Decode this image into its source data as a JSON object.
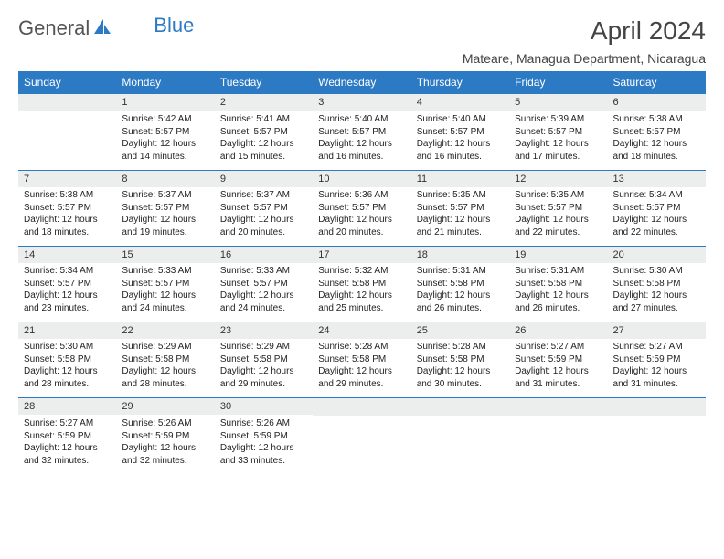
{
  "logo": {
    "word1": "General",
    "word2": "Blue"
  },
  "title": "April 2024",
  "location": "Mateare, Managua Department, Nicaragua",
  "headers": [
    "Sunday",
    "Monday",
    "Tuesday",
    "Wednesday",
    "Thursday",
    "Friday",
    "Saturday"
  ],
  "colors": {
    "header_bg": "#2d7ac4",
    "daynum_bg": "#eceded",
    "rule": "#2d7ac4"
  },
  "weeks": [
    [
      {
        "n": "",
        "lines": []
      },
      {
        "n": "1",
        "lines": [
          "Sunrise: 5:42 AM",
          "Sunset: 5:57 PM",
          "Daylight: 12 hours and 14 minutes."
        ]
      },
      {
        "n": "2",
        "lines": [
          "Sunrise: 5:41 AM",
          "Sunset: 5:57 PM",
          "Daylight: 12 hours and 15 minutes."
        ]
      },
      {
        "n": "3",
        "lines": [
          "Sunrise: 5:40 AM",
          "Sunset: 5:57 PM",
          "Daylight: 12 hours and 16 minutes."
        ]
      },
      {
        "n": "4",
        "lines": [
          "Sunrise: 5:40 AM",
          "Sunset: 5:57 PM",
          "Daylight: 12 hours and 16 minutes."
        ]
      },
      {
        "n": "5",
        "lines": [
          "Sunrise: 5:39 AM",
          "Sunset: 5:57 PM",
          "Daylight: 12 hours and 17 minutes."
        ]
      },
      {
        "n": "6",
        "lines": [
          "Sunrise: 5:38 AM",
          "Sunset: 5:57 PM",
          "Daylight: 12 hours and 18 minutes."
        ]
      }
    ],
    [
      {
        "n": "7",
        "lines": [
          "Sunrise: 5:38 AM",
          "Sunset: 5:57 PM",
          "Daylight: 12 hours and 18 minutes."
        ]
      },
      {
        "n": "8",
        "lines": [
          "Sunrise: 5:37 AM",
          "Sunset: 5:57 PM",
          "Daylight: 12 hours and 19 minutes."
        ]
      },
      {
        "n": "9",
        "lines": [
          "Sunrise: 5:37 AM",
          "Sunset: 5:57 PM",
          "Daylight: 12 hours and 20 minutes."
        ]
      },
      {
        "n": "10",
        "lines": [
          "Sunrise: 5:36 AM",
          "Sunset: 5:57 PM",
          "Daylight: 12 hours and 20 minutes."
        ]
      },
      {
        "n": "11",
        "lines": [
          "Sunrise: 5:35 AM",
          "Sunset: 5:57 PM",
          "Daylight: 12 hours and 21 minutes."
        ]
      },
      {
        "n": "12",
        "lines": [
          "Sunrise: 5:35 AM",
          "Sunset: 5:57 PM",
          "Daylight: 12 hours and 22 minutes."
        ]
      },
      {
        "n": "13",
        "lines": [
          "Sunrise: 5:34 AM",
          "Sunset: 5:57 PM",
          "Daylight: 12 hours and 22 minutes."
        ]
      }
    ],
    [
      {
        "n": "14",
        "lines": [
          "Sunrise: 5:34 AM",
          "Sunset: 5:57 PM",
          "Daylight: 12 hours and 23 minutes."
        ]
      },
      {
        "n": "15",
        "lines": [
          "Sunrise: 5:33 AM",
          "Sunset: 5:57 PM",
          "Daylight: 12 hours and 24 minutes."
        ]
      },
      {
        "n": "16",
        "lines": [
          "Sunrise: 5:33 AM",
          "Sunset: 5:57 PM",
          "Daylight: 12 hours and 24 minutes."
        ]
      },
      {
        "n": "17",
        "lines": [
          "Sunrise: 5:32 AM",
          "Sunset: 5:58 PM",
          "Daylight: 12 hours and 25 minutes."
        ]
      },
      {
        "n": "18",
        "lines": [
          "Sunrise: 5:31 AM",
          "Sunset: 5:58 PM",
          "Daylight: 12 hours and 26 minutes."
        ]
      },
      {
        "n": "19",
        "lines": [
          "Sunrise: 5:31 AM",
          "Sunset: 5:58 PM",
          "Daylight: 12 hours and 26 minutes."
        ]
      },
      {
        "n": "20",
        "lines": [
          "Sunrise: 5:30 AM",
          "Sunset: 5:58 PM",
          "Daylight: 12 hours and 27 minutes."
        ]
      }
    ],
    [
      {
        "n": "21",
        "lines": [
          "Sunrise: 5:30 AM",
          "Sunset: 5:58 PM",
          "Daylight: 12 hours and 28 minutes."
        ]
      },
      {
        "n": "22",
        "lines": [
          "Sunrise: 5:29 AM",
          "Sunset: 5:58 PM",
          "Daylight: 12 hours and 28 minutes."
        ]
      },
      {
        "n": "23",
        "lines": [
          "Sunrise: 5:29 AM",
          "Sunset: 5:58 PM",
          "Daylight: 12 hours and 29 minutes."
        ]
      },
      {
        "n": "24",
        "lines": [
          "Sunrise: 5:28 AM",
          "Sunset: 5:58 PM",
          "Daylight: 12 hours and 29 minutes."
        ]
      },
      {
        "n": "25",
        "lines": [
          "Sunrise: 5:28 AM",
          "Sunset: 5:58 PM",
          "Daylight: 12 hours and 30 minutes."
        ]
      },
      {
        "n": "26",
        "lines": [
          "Sunrise: 5:27 AM",
          "Sunset: 5:59 PM",
          "Daylight: 12 hours and 31 minutes."
        ]
      },
      {
        "n": "27",
        "lines": [
          "Sunrise: 5:27 AM",
          "Sunset: 5:59 PM",
          "Daylight: 12 hours and 31 minutes."
        ]
      }
    ],
    [
      {
        "n": "28",
        "lines": [
          "Sunrise: 5:27 AM",
          "Sunset: 5:59 PM",
          "Daylight: 12 hours and 32 minutes."
        ]
      },
      {
        "n": "29",
        "lines": [
          "Sunrise: 5:26 AM",
          "Sunset: 5:59 PM",
          "Daylight: 12 hours and 32 minutes."
        ]
      },
      {
        "n": "30",
        "lines": [
          "Sunrise: 5:26 AM",
          "Sunset: 5:59 PM",
          "Daylight: 12 hours and 33 minutes."
        ]
      },
      {
        "n": "",
        "lines": []
      },
      {
        "n": "",
        "lines": []
      },
      {
        "n": "",
        "lines": []
      },
      {
        "n": "",
        "lines": []
      }
    ]
  ]
}
